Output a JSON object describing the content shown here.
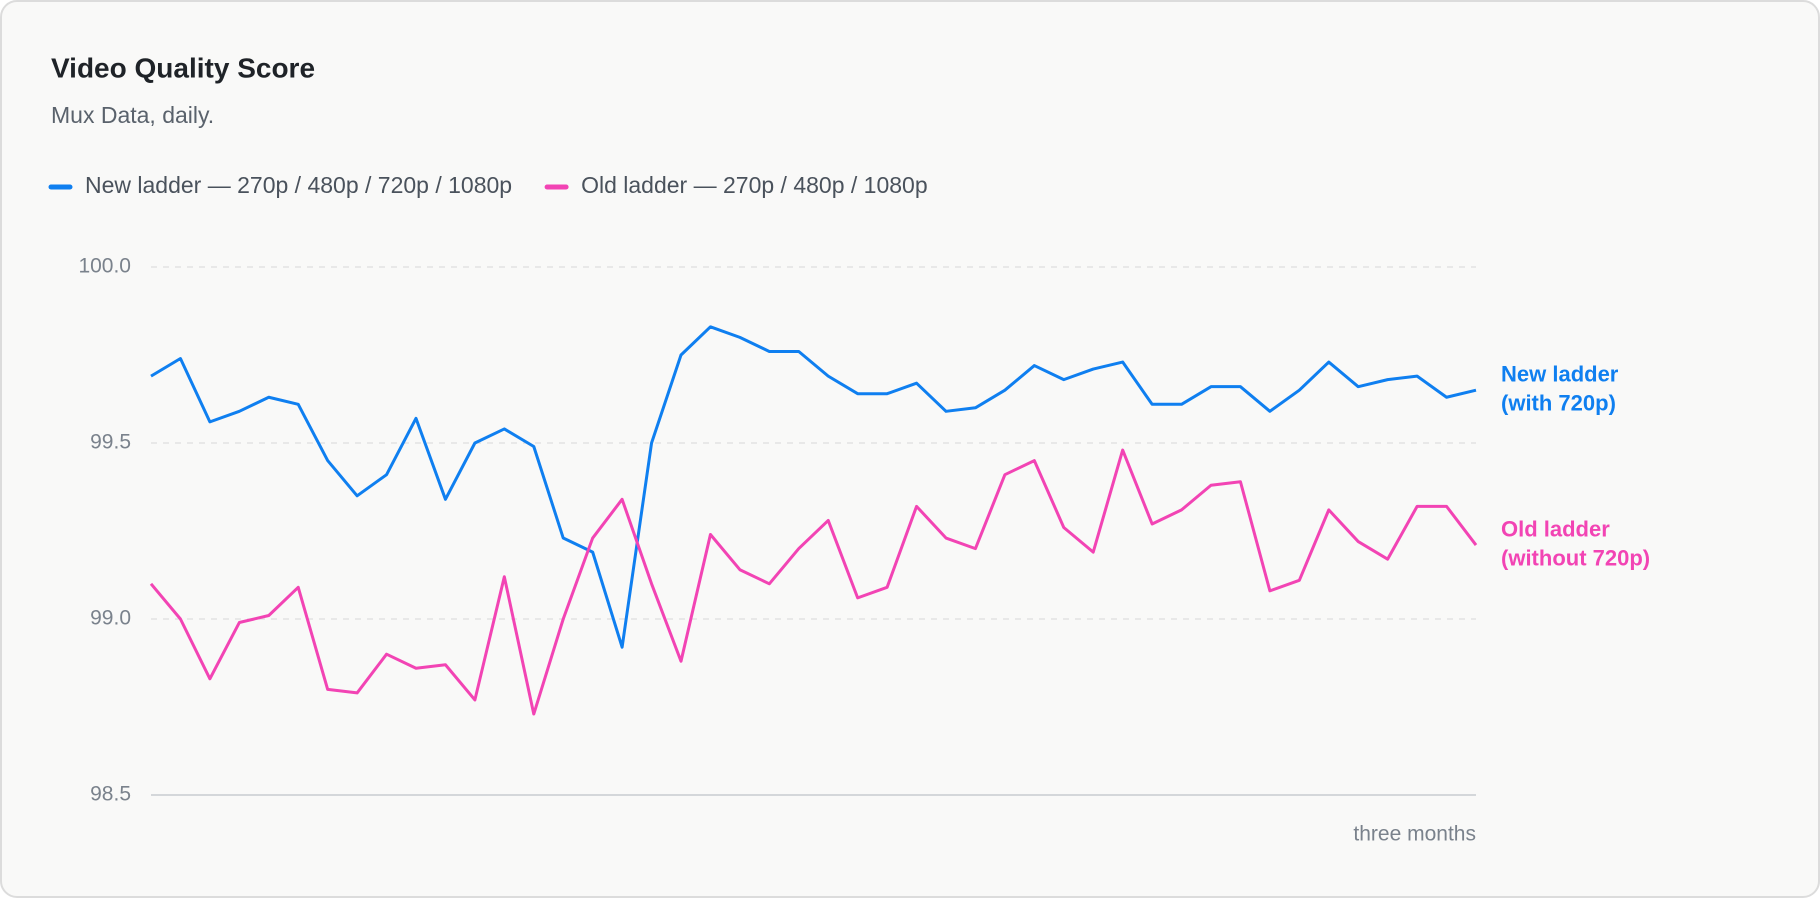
{
  "chart_data": {
    "type": "line",
    "title": "Video Quality Score",
    "subtitle": "Mux Data, daily.",
    "x_label": "three months",
    "categories": [
      null,
      null,
      null,
      null,
      null,
      null,
      null,
      null,
      null,
      null,
      null,
      null,
      null,
      null,
      null,
      null,
      null,
      null,
      null,
      null,
      null,
      null,
      null,
      null,
      null,
      null,
      null,
      null,
      null,
      null,
      null,
      null,
      null,
      null,
      null,
      null,
      null,
      null,
      null,
      null,
      null,
      null,
      null,
      null,
      null,
      null
    ],
    "series": [
      {
        "name": "New ladder — 270p / 480p / 720p / 1080p",
        "color": "#0f7ff0",
        "values": [
          99.69,
          99.74,
          99.56,
          99.59,
          99.63,
          99.61,
          99.45,
          99.35,
          99.41,
          99.57,
          99.34,
          99.5,
          99.54,
          99.49,
          99.23,
          99.19,
          98.92,
          99.5,
          99.75,
          99.83,
          99.8,
          99.76,
          99.76,
          99.69,
          99.64,
          99.64,
          99.67,
          99.59,
          99.6,
          99.65,
          99.72,
          99.68,
          99.71,
          99.73,
          99.61,
          99.61,
          99.66,
          99.66,
          99.59,
          99.65,
          99.73,
          99.66,
          99.68,
          99.69,
          99.63,
          99.65
        ]
      },
      {
        "name": "Old ladder — 270p / 480p / 1080p",
        "color": "#f244b4",
        "values": [
          99.1,
          99.0,
          98.83,
          98.99,
          99.01,
          99.09,
          98.8,
          98.79,
          98.9,
          98.86,
          98.87,
          98.77,
          99.12,
          98.73,
          99.0,
          99.23,
          99.34,
          99.1,
          98.88,
          99.24,
          99.14,
          99.1,
          99.2,
          99.28,
          99.06,
          99.09,
          99.32,
          99.23,
          99.2,
          99.41,
          99.45,
          99.26,
          99.19,
          99.48,
          99.27,
          99.31,
          99.38,
          99.39,
          99.08,
          99.11,
          99.31,
          99.22,
          99.17,
          99.32,
          99.32,
          99.21
        ]
      }
    ],
    "annotations": [
      [
        "New ladder",
        "(with 720p)"
      ],
      [
        "Old ladder",
        "(without 720p)"
      ]
    ],
    "ylim": [
      98.5,
      100.0
    ],
    "yticks": [
      98.5,
      {
        "value": 99.0,
        "label": "99.0"
      },
      99.5,
      {
        "value": 100.0,
        "label": "100.0"
      }
    ],
    "grid": true
  }
}
